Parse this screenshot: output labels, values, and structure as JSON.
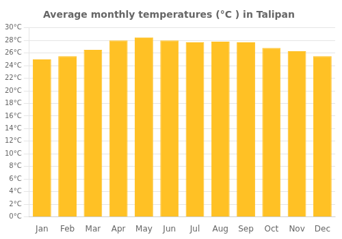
{
  "chart_data": {
    "type": "bar",
    "title": "Average monthly temperatures (°C ) in Talipan",
    "categories": [
      "Jan",
      "Feb",
      "Mar",
      "Apr",
      "May",
      "Jun",
      "Jul",
      "Aug",
      "Sep",
      "Oct",
      "Nov",
      "Dec"
    ],
    "values": [
      25.0,
      25.5,
      26.5,
      28.0,
      28.5,
      28.0,
      27.7,
      27.8,
      27.7,
      26.8,
      26.3,
      25.5
    ],
    "color": "#FFC125",
    "ylim": [
      0,
      30
    ],
    "yticks": [
      {
        "value": 0,
        "label": "0°C"
      },
      {
        "value": 2,
        "label": "2°C"
      },
      {
        "value": 4,
        "label": "4°C"
      },
      {
        "value": 6,
        "label": "6°C"
      },
      {
        "value": 8,
        "label": "8°C"
      },
      {
        "value": 10,
        "label": "10°C"
      },
      {
        "value": 12,
        "label": "12°C"
      },
      {
        "value": 14,
        "label": "14°C"
      },
      {
        "value": 16,
        "label": "16°C"
      },
      {
        "value": 18,
        "label": "18°C"
      },
      {
        "value": 20,
        "label": "20°C"
      },
      {
        "value": 22,
        "label": "22°C"
      },
      {
        "value": 24,
        "label": "24°C"
      },
      {
        "value": 26,
        "label": "26°C"
      },
      {
        "value": 28,
        "label": "28°C"
      },
      {
        "value": 30,
        "label": "30°C"
      }
    ],
    "grid": "y"
  }
}
